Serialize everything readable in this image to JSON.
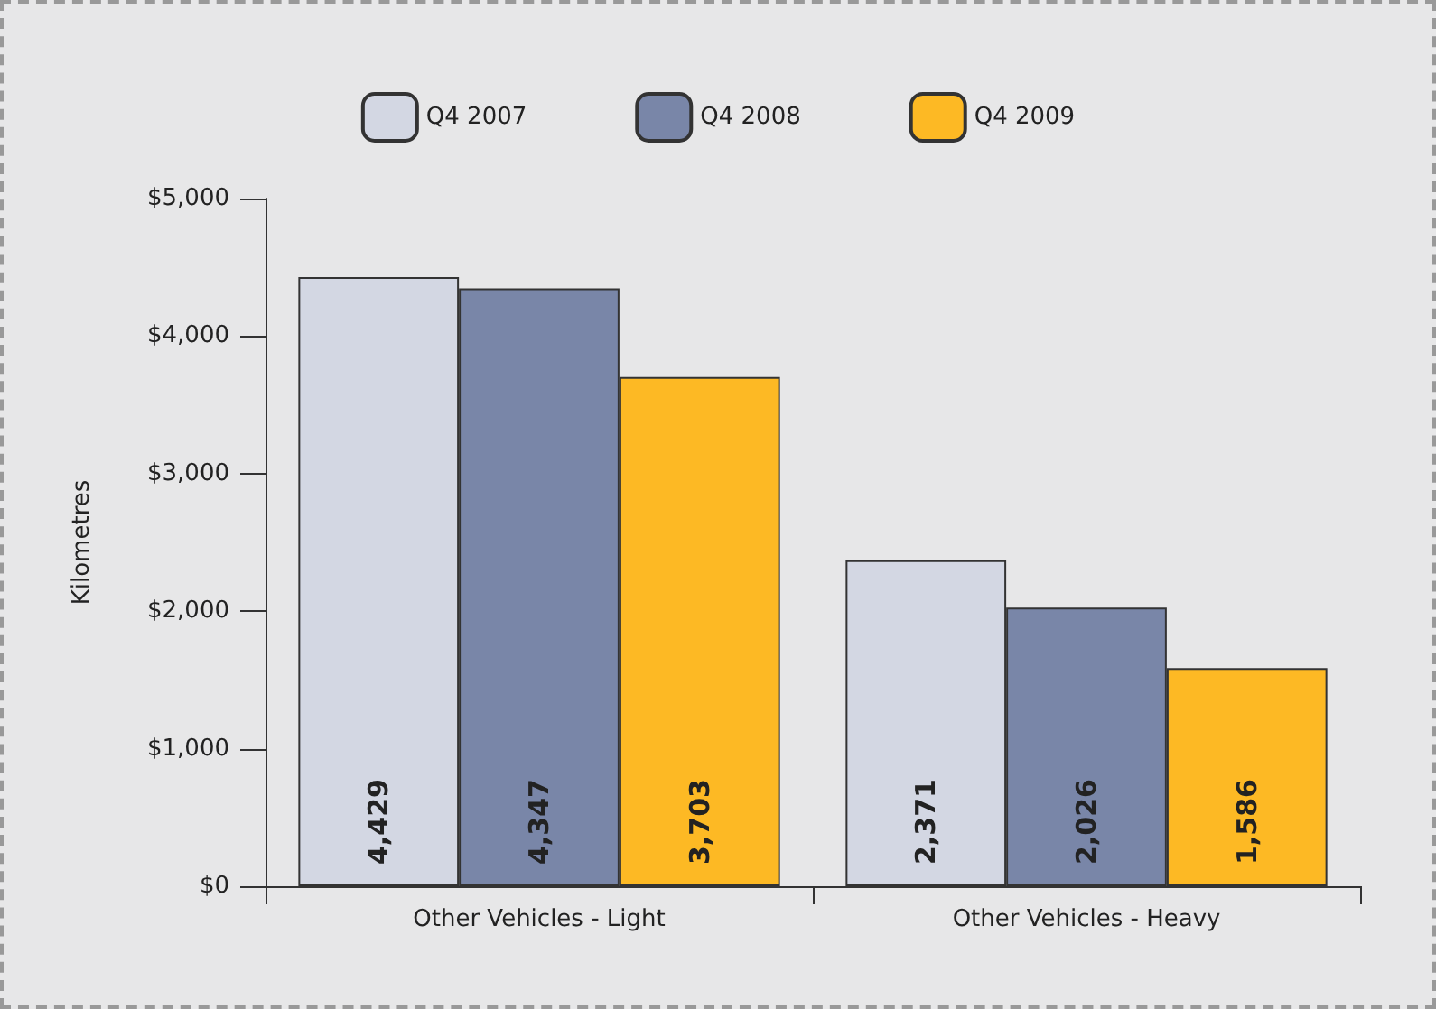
{
  "chart_data": {
    "type": "bar",
    "ylabel": "Kilometres",
    "categories": [
      "Other Vehicles - Light",
      "Other Vehicles - Heavy"
    ],
    "series": [
      {
        "name": "Q4 2007",
        "color": "#d3d7e3",
        "values": [
          4429,
          2371
        ],
        "value_labels": [
          "4,429",
          "2,371"
        ]
      },
      {
        "name": "Q4 2008",
        "color": "#7986a8",
        "values": [
          4347,
          2026
        ],
        "value_labels": [
          "4,347",
          "2,026"
        ]
      },
      {
        "name": "Q4 2009",
        "color": "#fdb924",
        "values": [
          3703,
          1586
        ],
        "value_labels": [
          "3,703",
          "1,586"
        ]
      }
    ],
    "ylim": [
      0,
      5000
    ],
    "yticks": [
      {
        "value": 0,
        "label": "$0"
      },
      {
        "value": 1000,
        "label": "$1,000"
      },
      {
        "value": 2000,
        "label": "$2,000"
      },
      {
        "value": 3000,
        "label": "$3,000"
      },
      {
        "value": 4000,
        "label": "$4,000"
      },
      {
        "value": 5000,
        "label": "$5,000"
      }
    ],
    "grid": false,
    "legend": "top"
  }
}
